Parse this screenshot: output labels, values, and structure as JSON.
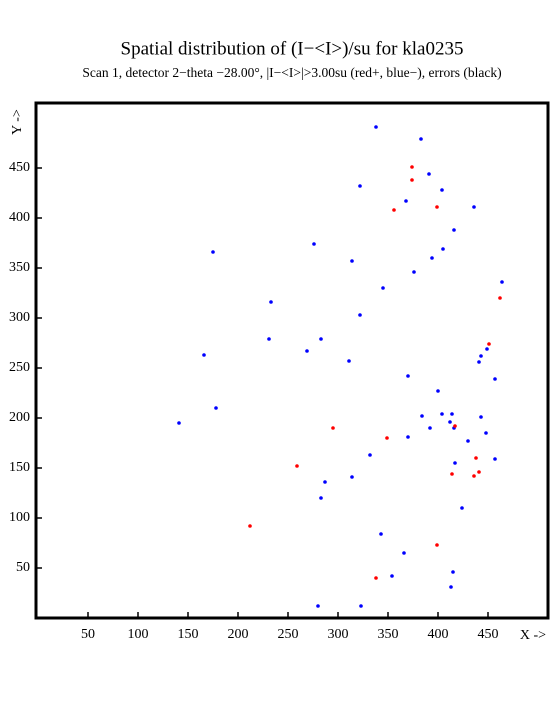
{
  "chart_data": {
    "type": "scatter",
    "title": "Spatial distribution of (I−<I>)/su for kla0235",
    "subtitle": "Scan  1, detector 2−theta −28.00°, |I−<I>|>3.00su (red+, blue−), errors (black)",
    "x_label": "X ->",
    "y_label": "Y ->",
    "xlim": [
      -2,
      510
    ],
    "ylim": [
      0,
      515
    ],
    "xticks": [
      50,
      100,
      150,
      200,
      250,
      300,
      350,
      400,
      450
    ],
    "yticks": [
      50,
      100,
      150,
      200,
      250,
      300,
      350,
      400,
      450
    ],
    "series": [
      {
        "color": "#0000ff",
        "x": [
          338,
          383,
          322,
          391,
          404,
          368,
          436,
          416,
          276,
          175,
          405,
          394,
          314,
          376,
          464,
          345,
          233,
          322,
          231,
          283,
          269,
          166,
          449,
          443,
          441,
          311,
          370,
          457,
          400,
          178,
          384,
          404,
          414,
          443,
          412,
          141,
          416,
          392,
          448,
          370,
          430,
          332,
          457,
          417,
          314,
          287,
          283,
          424,
          343,
          366,
          415,
          354,
          413,
          280,
          323
        ],
        "values": [
          491,
          479,
          432,
          444,
          428,
          417,
          411,
          388,
          374,
          366,
          369,
          360,
          357,
          346,
          336,
          330,
          316,
          303,
          279,
          279,
          267,
          263,
          269,
          262,
          256,
          257,
          242,
          239,
          227,
          210,
          202,
          204,
          204,
          201,
          196,
          195,
          190,
          190,
          185,
          181,
          177,
          163,
          159,
          155,
          141,
          136,
          120,
          110,
          84,
          65,
          46,
          42,
          31,
          12,
          12
        ]
      },
      {
        "color": "#ff0000",
        "x": [
          374,
          374,
          356,
          399,
          462,
          451,
          295,
          349,
          417,
          438,
          259,
          414,
          441,
          436,
          212,
          399,
          338
        ],
        "values": [
          451,
          438,
          408,
          411,
          320,
          274,
          190,
          180,
          192,
          160,
          152,
          144,
          146,
          142,
          92,
          73,
          40
        ]
      }
    ]
  }
}
